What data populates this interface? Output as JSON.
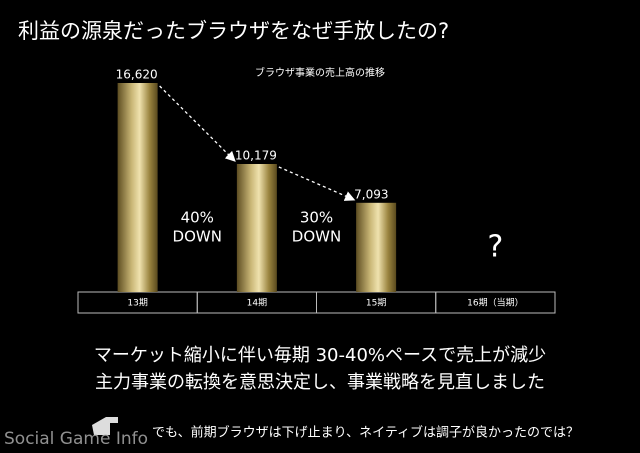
{
  "slide": {
    "heading": "利益の源泉だったブラウザをなぜ手放したの?",
    "body": [
      "マーケット縮小に伴い毎期 30-40%ペースで売上が減少",
      "主力事業の転換を意思決定し、事業戦略を見直しました"
    ],
    "note": "でも、前期ブラウザは下げ止まり、ネイティブは調子が良かったのでは？"
  },
  "watermark": "Social Game Info",
  "chart_data": {
    "type": "bar",
    "title": "ブラウザ事業の売上高の推移",
    "categories": [
      "13期",
      "14期",
      "15期",
      "16期（当期）"
    ],
    "values": [
      16620,
      10179,
      7093,
      null
    ],
    "value_labels": [
      "16,620",
      "10,179",
      "7,093",
      null
    ],
    "missing_label": "?",
    "annotations": [
      [
        "40%",
        "DOWN"
      ],
      [
        "30%",
        "DOWN"
      ]
    ]
  }
}
